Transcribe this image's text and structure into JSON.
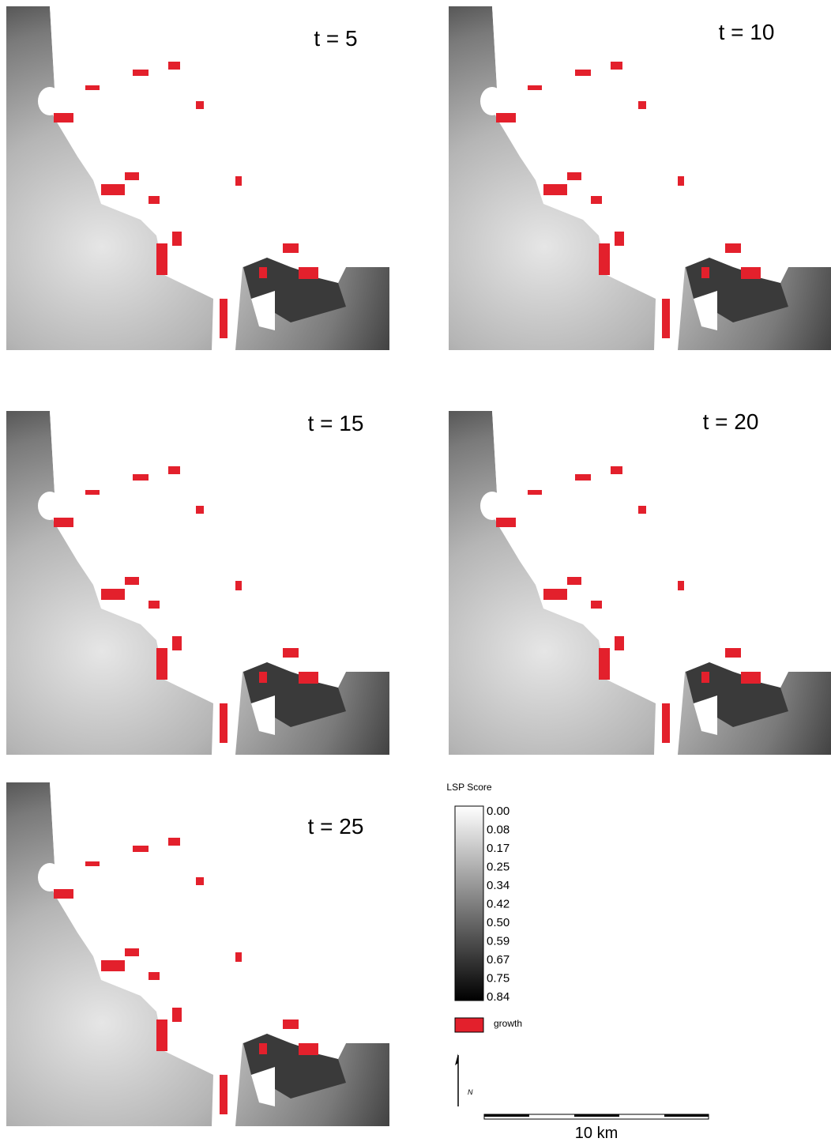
{
  "panels": [
    {
      "label": "t = 5"
    },
    {
      "label": "t = 10"
    },
    {
      "label": "t = 15"
    },
    {
      "label": "t = 20"
    },
    {
      "label": "t = 25"
    }
  ],
  "legend": {
    "title": "LSP Score",
    "ticks": [
      "0.00",
      "0.08",
      "0.17",
      "0.25",
      "0.34",
      "0.42",
      "0.50",
      "0.59",
      "0.67",
      "0.75",
      "0.84"
    ],
    "growth": "growth"
  },
  "north": "N",
  "scale_bar": "10 km"
}
